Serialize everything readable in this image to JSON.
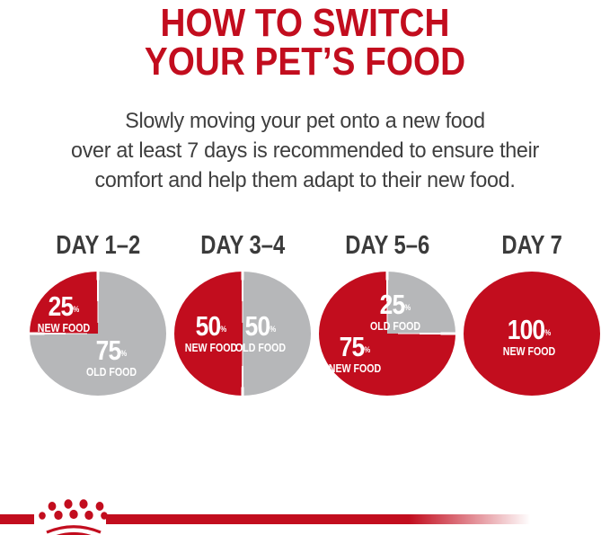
{
  "header": {
    "title_line1": "HOW TO SWITCH",
    "title_line2": "YOUR PET’S FOOD"
  },
  "intro": {
    "text": "Slowly moving your pet onto a new food\nover at least 7 days is recommended to ensure their\ncomfort and help them adapt to their new food."
  },
  "colors": {
    "brand_red": "#c20d1e",
    "pie_gray": "#b6b7b9",
    "heading_dark": "#3b3b3b",
    "label_white": "#ffffff"
  },
  "chart_data": {
    "type": "pie",
    "title": "HOW TO SWITCH YOUR PET’S FOOD",
    "layout": "four pies left to right, day label above each pie, labels inside slices",
    "pies": [
      {
        "title": "DAY 1–2",
        "slices": [
          {
            "name": "NEW FOOD",
            "pct": 25,
            "label": "25%",
            "sublabel": "NEW FOOD",
            "color": "#c20d1e"
          },
          {
            "name": "OLD FOOD",
            "pct": 75,
            "label": "75%",
            "sublabel": "OLD FOOD",
            "color": "#b6b7b9"
          }
        ]
      },
      {
        "title": "DAY 3–4",
        "slices": [
          {
            "name": "NEW FOOD",
            "pct": 50,
            "label": "50%",
            "sublabel": "NEW FOOD",
            "color": "#c20d1e"
          },
          {
            "name": "OLD FOOD",
            "pct": 50,
            "label": "50%",
            "sublabel": "OLD FOOD",
            "color": "#b6b7b9"
          }
        ]
      },
      {
        "title": "DAY 5–6",
        "slices": [
          {
            "name": "NEW FOOD",
            "pct": 75,
            "label": "75%",
            "sublabel": "NEW FOOD",
            "color": "#c20d1e"
          },
          {
            "name": "OLD FOOD",
            "pct": 25,
            "label": "25%",
            "sublabel": "OLD FOOD",
            "color": "#b6b7b9"
          }
        ]
      },
      {
        "title": "DAY 7",
        "slices": [
          {
            "name": "NEW FOOD",
            "pct": 100,
            "label": "100%",
            "sublabel": "NEW FOOD",
            "color": "#c20d1e"
          }
        ]
      }
    ]
  },
  "footer": {
    "logo": "royal-canin-crown-icon"
  }
}
